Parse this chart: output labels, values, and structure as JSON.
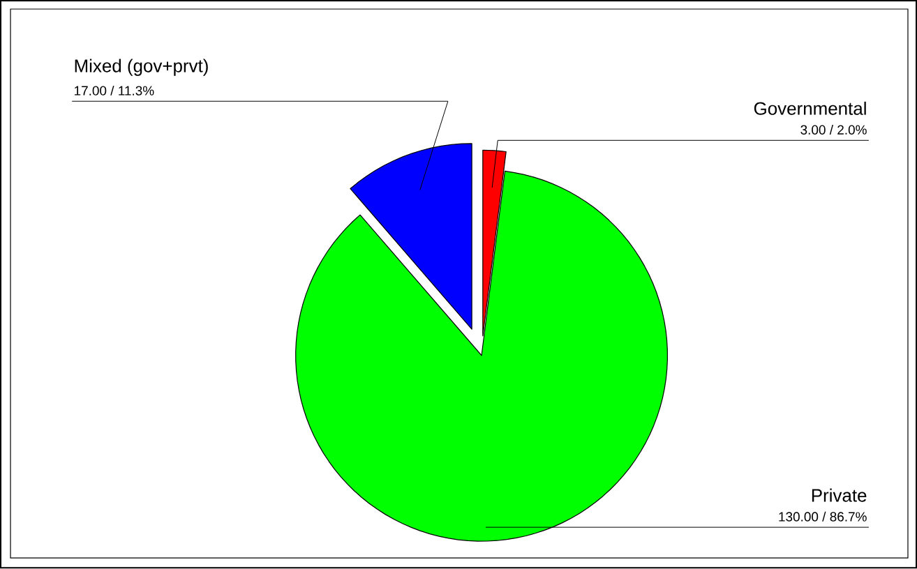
{
  "chart_data": {
    "type": "pie",
    "categories": [
      "Governmental",
      "Private",
      "Mixed (gov+prvt)"
    ],
    "values": [
      3,
      130,
      17
    ],
    "colors": [
      "#ff0000",
      "#00ff00",
      "#0000ff"
    ],
    "value_labels": [
      "3.00 / 2.0%",
      "130.00 / 86.7%",
      "17.00 / 11.3%"
    ]
  }
}
